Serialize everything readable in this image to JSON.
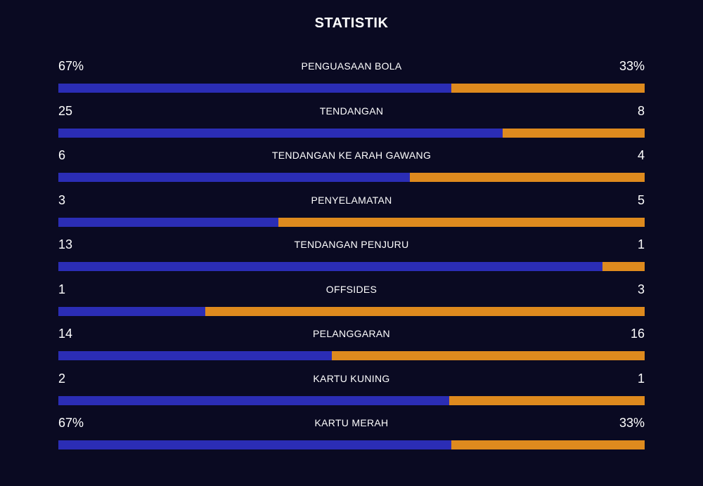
{
  "title": "STATISTIK",
  "colors": {
    "home": "#2b2db5",
    "away": "#de8a1e",
    "background": "#0a0a22"
  },
  "stats": [
    {
      "label": "PENGUASAAN BOLA",
      "home": "67%",
      "away": "33%",
      "home_share": 0.67
    },
    {
      "label": "TENDANGAN",
      "home": "25",
      "away": "8",
      "home_share": 0.7576
    },
    {
      "label": "TENDANGAN KE ARAH GAWANG",
      "home": "6",
      "away": "4",
      "home_share": 0.6
    },
    {
      "label": "PENYELAMATAN",
      "home": "3",
      "away": "5",
      "home_share": 0.375
    },
    {
      "label": "TENDANGAN PENJURU",
      "home": "13",
      "away": "1",
      "home_share": 0.9286
    },
    {
      "label": "OFFSIDES",
      "home": "1",
      "away": "3",
      "home_share": 0.25
    },
    {
      "label": "PELANGGARAN",
      "home": "14",
      "away": "16",
      "home_share": 0.4667
    },
    {
      "label": "KARTU KUNING",
      "home": "2",
      "away": "1",
      "home_share": 0.6667
    },
    {
      "label": "KARTU MERAH",
      "home": "67%",
      "away": "33%",
      "home_share": 0.67
    }
  ]
}
